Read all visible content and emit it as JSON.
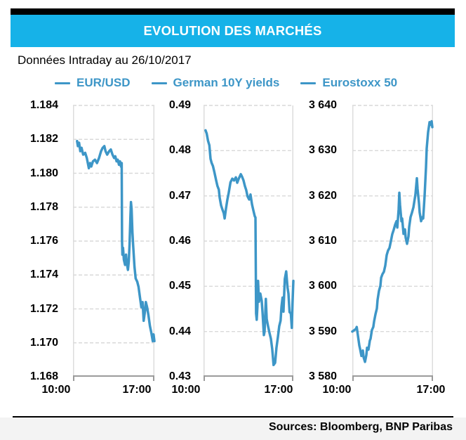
{
  "header": {
    "title": "EVOLUTION DES MARCHÉS"
  },
  "subtitle": "Données Intraday au 26/10/2017",
  "legend": [
    {
      "label": "EUR/USD"
    },
    {
      "label": "German 10Y yields"
    },
    {
      "label": "Eurostoxx 50"
    }
  ],
  "footer": {
    "sources": "Sources: Bloomberg, BNP Paribas"
  },
  "colors": {
    "accent_cyan": "#16B2E8",
    "line_blue": "#3D96C7",
    "grid_gray": "#d9d9d9",
    "axis_gray": "#9b9b9b"
  },
  "chart_data": [
    {
      "type": "line",
      "name": "eur-usd",
      "title": "EUR/USD",
      "x_ticks": [
        "10:00",
        "17:00"
      ],
      "x_range": [
        "10:00",
        "18:00"
      ],
      "ylim": [
        1.168,
        1.184
      ],
      "grid": true,
      "yticks": [
        {
          "v": 1.184,
          "label": "1.184"
        },
        {
          "v": 1.182,
          "label": "1.182"
        },
        {
          "v": 1.18,
          "label": "1.180"
        },
        {
          "v": 1.178,
          "label": "1.178"
        },
        {
          "v": 1.176,
          "label": "1.176"
        },
        {
          "v": 1.174,
          "label": "1.174"
        },
        {
          "v": 1.172,
          "label": "1.172"
        },
        {
          "v": 1.17,
          "label": "1.170"
        },
        {
          "v": 1.168,
          "label": "1.168"
        }
      ],
      "points": [
        [
          0.05,
          1.1819
        ],
        [
          0.06,
          1.1816
        ],
        [
          0.075,
          1.1818
        ],
        [
          0.09,
          1.1813
        ],
        [
          0.105,
          1.1815
        ],
        [
          0.125,
          1.1811
        ],
        [
          0.15,
          1.1812
        ],
        [
          0.17,
          1.1809
        ],
        [
          0.195,
          1.1803
        ],
        [
          0.21,
          1.1806
        ],
        [
          0.225,
          1.1804
        ],
        [
          0.245,
          1.1807
        ],
        [
          0.27,
          1.1808
        ],
        [
          0.295,
          1.1806
        ],
        [
          0.32,
          1.1809
        ],
        [
          0.345,
          1.1813
        ],
        [
          0.365,
          1.1815
        ],
        [
          0.385,
          1.1816
        ],
        [
          0.4,
          1.1813
        ],
        [
          0.42,
          1.1811
        ],
        [
          0.445,
          1.1813
        ],
        [
          0.465,
          1.1814
        ],
        [
          0.485,
          1.1811
        ],
        [
          0.505,
          1.1809
        ],
        [
          0.52,
          1.181
        ],
        [
          0.535,
          1.1807
        ],
        [
          0.55,
          1.1808
        ],
        [
          0.565,
          1.1805
        ],
        [
          0.578,
          1.1807
        ],
        [
          0.59,
          1.1804
        ],
        [
          0.598,
          1.1806
        ],
        [
          0.603,
          1.176
        ],
        [
          0.607,
          1.1752
        ],
        [
          0.615,
          1.1756
        ],
        [
          0.625,
          1.1749
        ],
        [
          0.64,
          1.1746
        ],
        [
          0.652,
          1.1752
        ],
        [
          0.66,
          1.1747
        ],
        [
          0.675,
          1.1743
        ],
        [
          0.685,
          1.1748
        ],
        [
          0.695,
          1.1758
        ],
        [
          0.705,
          1.1774
        ],
        [
          0.712,
          1.1783
        ],
        [
          0.72,
          1.1779
        ],
        [
          0.73,
          1.1765
        ],
        [
          0.74,
          1.1757
        ],
        [
          0.755,
          1.1745
        ],
        [
          0.77,
          1.1738
        ],
        [
          0.79,
          1.1736
        ],
        [
          0.805,
          1.1733
        ],
        [
          0.825,
          1.1726
        ],
        [
          0.84,
          1.1721
        ],
        [
          0.855,
          1.1724
        ],
        [
          0.868,
          1.1713
        ],
        [
          0.885,
          1.1719
        ],
        [
          0.895,
          1.1724
        ],
        [
          0.91,
          1.1721
        ],
        [
          0.928,
          1.1716
        ],
        [
          0.945,
          1.171
        ],
        [
          0.962,
          1.1706
        ],
        [
          0.98,
          1.1701
        ],
        [
          0.99,
          1.1705
        ],
        [
          1.0,
          1.1701
        ]
      ]
    },
    {
      "type": "line",
      "name": "german-10y-yields",
      "title": "German 10Y yields",
      "x_ticks": [
        "10:00",
        "17:00"
      ],
      "x_range": [
        "10:00",
        "18:00"
      ],
      "ylim": [
        0.43,
        0.49
      ],
      "grid": true,
      "yticks": [
        {
          "v": 0.49,
          "label": "0.49"
        },
        {
          "v": 0.48,
          "label": "0.48"
        },
        {
          "v": 0.47,
          "label": "0.47"
        },
        {
          "v": 0.46,
          "label": "0.46"
        },
        {
          "v": 0.45,
          "label": "0.45"
        },
        {
          "v": 0.44,
          "label": "0.44"
        },
        {
          "v": 0.43,
          "label": "0.43"
        }
      ],
      "points": [
        [
          0.023,
          0.4845
        ],
        [
          0.035,
          0.4838
        ],
        [
          0.05,
          0.4822
        ],
        [
          0.065,
          0.4812
        ],
        [
          0.078,
          0.4782
        ],
        [
          0.09,
          0.4773
        ],
        [
          0.105,
          0.4766
        ],
        [
          0.12,
          0.4753
        ],
        [
          0.14,
          0.4735
        ],
        [
          0.155,
          0.4722
        ],
        [
          0.17,
          0.4714
        ],
        [
          0.18,
          0.4696
        ],
        [
          0.195,
          0.4679
        ],
        [
          0.21,
          0.467
        ],
        [
          0.225,
          0.4662
        ],
        [
          0.235,
          0.465
        ],
        [
          0.25,
          0.4672
        ],
        [
          0.265,
          0.4691
        ],
        [
          0.28,
          0.4706
        ],
        [
          0.3,
          0.473
        ],
        [
          0.32,
          0.4738
        ],
        [
          0.34,
          0.4734
        ],
        [
          0.36,
          0.4741
        ],
        [
          0.375,
          0.4729
        ],
        [
          0.39,
          0.4737
        ],
        [
          0.415,
          0.4748
        ],
        [
          0.43,
          0.4742
        ],
        [
          0.445,
          0.4734
        ],
        [
          0.46,
          0.4722
        ],
        [
          0.475,
          0.4713
        ],
        [
          0.49,
          0.4699
        ],
        [
          0.508,
          0.4692
        ],
        [
          0.523,
          0.4703
        ],
        [
          0.54,
          0.4681
        ],
        [
          0.555,
          0.4668
        ],
        [
          0.57,
          0.4655
        ],
        [
          0.578,
          0.4652
        ],
        [
          0.585,
          0.444
        ],
        [
          0.592,
          0.4426
        ],
        [
          0.6,
          0.4455
        ],
        [
          0.607,
          0.4512
        ],
        [
          0.617,
          0.4466
        ],
        [
          0.632,
          0.4484
        ],
        [
          0.648,
          0.4468
        ],
        [
          0.656,
          0.4444
        ],
        [
          0.672,
          0.4392
        ],
        [
          0.68,
          0.44
        ],
        [
          0.694,
          0.4472
        ],
        [
          0.703,
          0.4428
        ],
        [
          0.718,
          0.4412
        ],
        [
          0.734,
          0.4397
        ],
        [
          0.75,
          0.4384
        ],
        [
          0.765,
          0.4361
        ],
        [
          0.78,
          0.4326
        ],
        [
          0.797,
          0.4331
        ],
        [
          0.812,
          0.4364
        ],
        [
          0.828,
          0.4388
        ],
        [
          0.843,
          0.4412
        ],
        [
          0.858,
          0.4424
        ],
        [
          0.868,
          0.4455
        ],
        [
          0.88,
          0.4475
        ],
        [
          0.89,
          0.4444
        ],
        [
          0.905,
          0.4516
        ],
        [
          0.92,
          0.4533
        ],
        [
          0.935,
          0.4497
        ],
        [
          0.945,
          0.4484
        ],
        [
          0.958,
          0.4443
        ],
        [
          0.972,
          0.444
        ],
        [
          0.983,
          0.4408
        ],
        [
          0.991,
          0.4462
        ],
        [
          1.0,
          0.4512
        ]
      ]
    },
    {
      "type": "line",
      "name": "eurostoxx-50",
      "title": "Eurostoxx 50",
      "x_ticks": [
        "10:00",
        "17:00"
      ],
      "x_range": [
        "10:00",
        "18:00"
      ],
      "ylim": [
        3580,
        3640
      ],
      "grid": true,
      "yticks": [
        {
          "v": 3640,
          "label": "3 640"
        },
        {
          "v": 3630,
          "label": "3 630"
        },
        {
          "v": 3620,
          "label": "3 620"
        },
        {
          "v": 3610,
          "label": "3 610"
        },
        {
          "v": 3600,
          "label": "3 600"
        },
        {
          "v": 3590,
          "label": "3 590"
        },
        {
          "v": 3580,
          "label": "3 580"
        }
      ],
      "points": [
        [
          0.0,
          3590.0
        ],
        [
          0.025,
          3590.3
        ],
        [
          0.045,
          3590.6
        ],
        [
          0.055,
          3591.0
        ],
        [
          0.07,
          3589.0
        ],
        [
          0.087,
          3586.9
        ],
        [
          0.096,
          3586.2
        ],
        [
          0.113,
          3584.6
        ],
        [
          0.13,
          3585.8
        ],
        [
          0.14,
          3584.3
        ],
        [
          0.157,
          3583.3
        ],
        [
          0.174,
          3584.8
        ],
        [
          0.183,
          3586.4
        ],
        [
          0.2,
          3586.0
        ],
        [
          0.217,
          3588.0
        ],
        [
          0.226,
          3588.4
        ],
        [
          0.243,
          3590.3
        ],
        [
          0.26,
          3591.0
        ],
        [
          0.27,
          3592.3
        ],
        [
          0.287,
          3593.8
        ],
        [
          0.304,
          3595.1
        ],
        [
          0.313,
          3597.0
        ],
        [
          0.33,
          3599.0
        ],
        [
          0.348,
          3600.1
        ],
        [
          0.357,
          3601.9
        ],
        [
          0.374,
          3602.7
        ],
        [
          0.391,
          3603.2
        ],
        [
          0.409,
          3604.6
        ],
        [
          0.426,
          3606.9
        ],
        [
          0.443,
          3607.9
        ],
        [
          0.461,
          3608.5
        ],
        [
          0.478,
          3610.0
        ],
        [
          0.495,
          3611.5
        ],
        [
          0.513,
          3612.5
        ],
        [
          0.53,
          3613.6
        ],
        [
          0.548,
          3614.4
        ],
        [
          0.557,
          3613.0
        ],
        [
          0.574,
          3617.0
        ],
        [
          0.583,
          3620.7
        ],
        [
          0.591,
          3618.0
        ],
        [
          0.609,
          3614.4
        ],
        [
          0.617,
          3615.0
        ],
        [
          0.635,
          3611.6
        ],
        [
          0.652,
          3612.6
        ],
        [
          0.661,
          3610.8
        ],
        [
          0.678,
          3609.4
        ],
        [
          0.696,
          3611.0
        ],
        [
          0.704,
          3613.1
        ],
        [
          0.722,
          3615.3
        ],
        [
          0.739,
          3616.3
        ],
        [
          0.757,
          3617.5
        ],
        [
          0.765,
          3618.4
        ],
        [
          0.783,
          3620.4
        ],
        [
          0.8,
          3623.9
        ],
        [
          0.809,
          3621.5
        ],
        [
          0.826,
          3618.4
        ],
        [
          0.835,
          3616.3
        ],
        [
          0.852,
          3614.4
        ],
        [
          0.87,
          3615.3
        ],
        [
          0.878,
          3615.0
        ],
        [
          0.896,
          3620.0
        ],
        [
          0.913,
          3626.3
        ],
        [
          0.922,
          3630.5
        ],
        [
          0.939,
          3634.1
        ],
        [
          0.957,
          3636.3
        ],
        [
          0.965,
          3635.7
        ],
        [
          0.983,
          3636.5
        ],
        [
          0.991,
          3635.2
        ]
      ]
    }
  ]
}
